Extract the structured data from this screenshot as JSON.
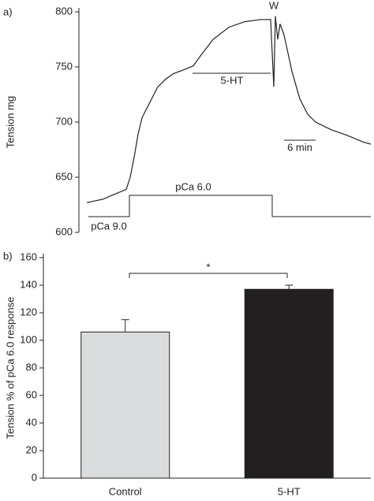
{
  "chart_data": [
    {
      "type": "line",
      "panel_label": "a)",
      "ylabel": "Tension mg",
      "x": [
        0,
        3,
        6,
        7.5,
        8.25,
        9,
        9.75,
        10.5,
        12,
        13.5,
        15,
        16.5,
        18.75,
        20.25,
        21.75,
        24,
        27,
        30,
        33,
        34.95,
        35.55,
        35.85,
        36.3,
        36.75,
        37.5,
        39,
        40.5,
        42,
        43.5,
        46.5,
        49.5,
        52.5,
        54
      ],
      "series": [
        {
          "name": "Tension",
          "color": "#222222",
          "values": [
            627,
            630,
            636,
            639,
            650,
            668,
            689,
            704,
            718,
            732,
            739,
            744,
            748,
            751,
            761,
            775,
            786,
            791,
            793,
            793,
            732,
            796,
            775,
            789,
            779,
            746,
            721,
            707,
            700,
            693,
            688,
            682,
            680
          ]
        }
      ],
      "xlim": [
        0,
        54
      ],
      "ylim": [
        600,
        800
      ],
      "yticks": [
        600,
        650,
        700,
        750,
        800
      ],
      "annotations": [
        "W",
        "5-HT",
        "6 min",
        "pCa 6.0",
        "pCa 9.0"
      ]
    },
    {
      "type": "bar",
      "panel_label": "b)",
      "ylabel": "Tension % of pCa 6.0 response",
      "categories": [
        "Control",
        "5-HT"
      ],
      "series": [
        {
          "name": "Tension",
          "values": [
            106,
            137
          ],
          "errors": [
            9,
            3
          ],
          "colors": [
            "#d9dbdd",
            "#231f20"
          ]
        }
      ],
      "ylim": [
        0,
        160
      ],
      "yticks": [
        0,
        20,
        40,
        60,
        80,
        100,
        120,
        140,
        160
      ],
      "significance": "*"
    }
  ]
}
